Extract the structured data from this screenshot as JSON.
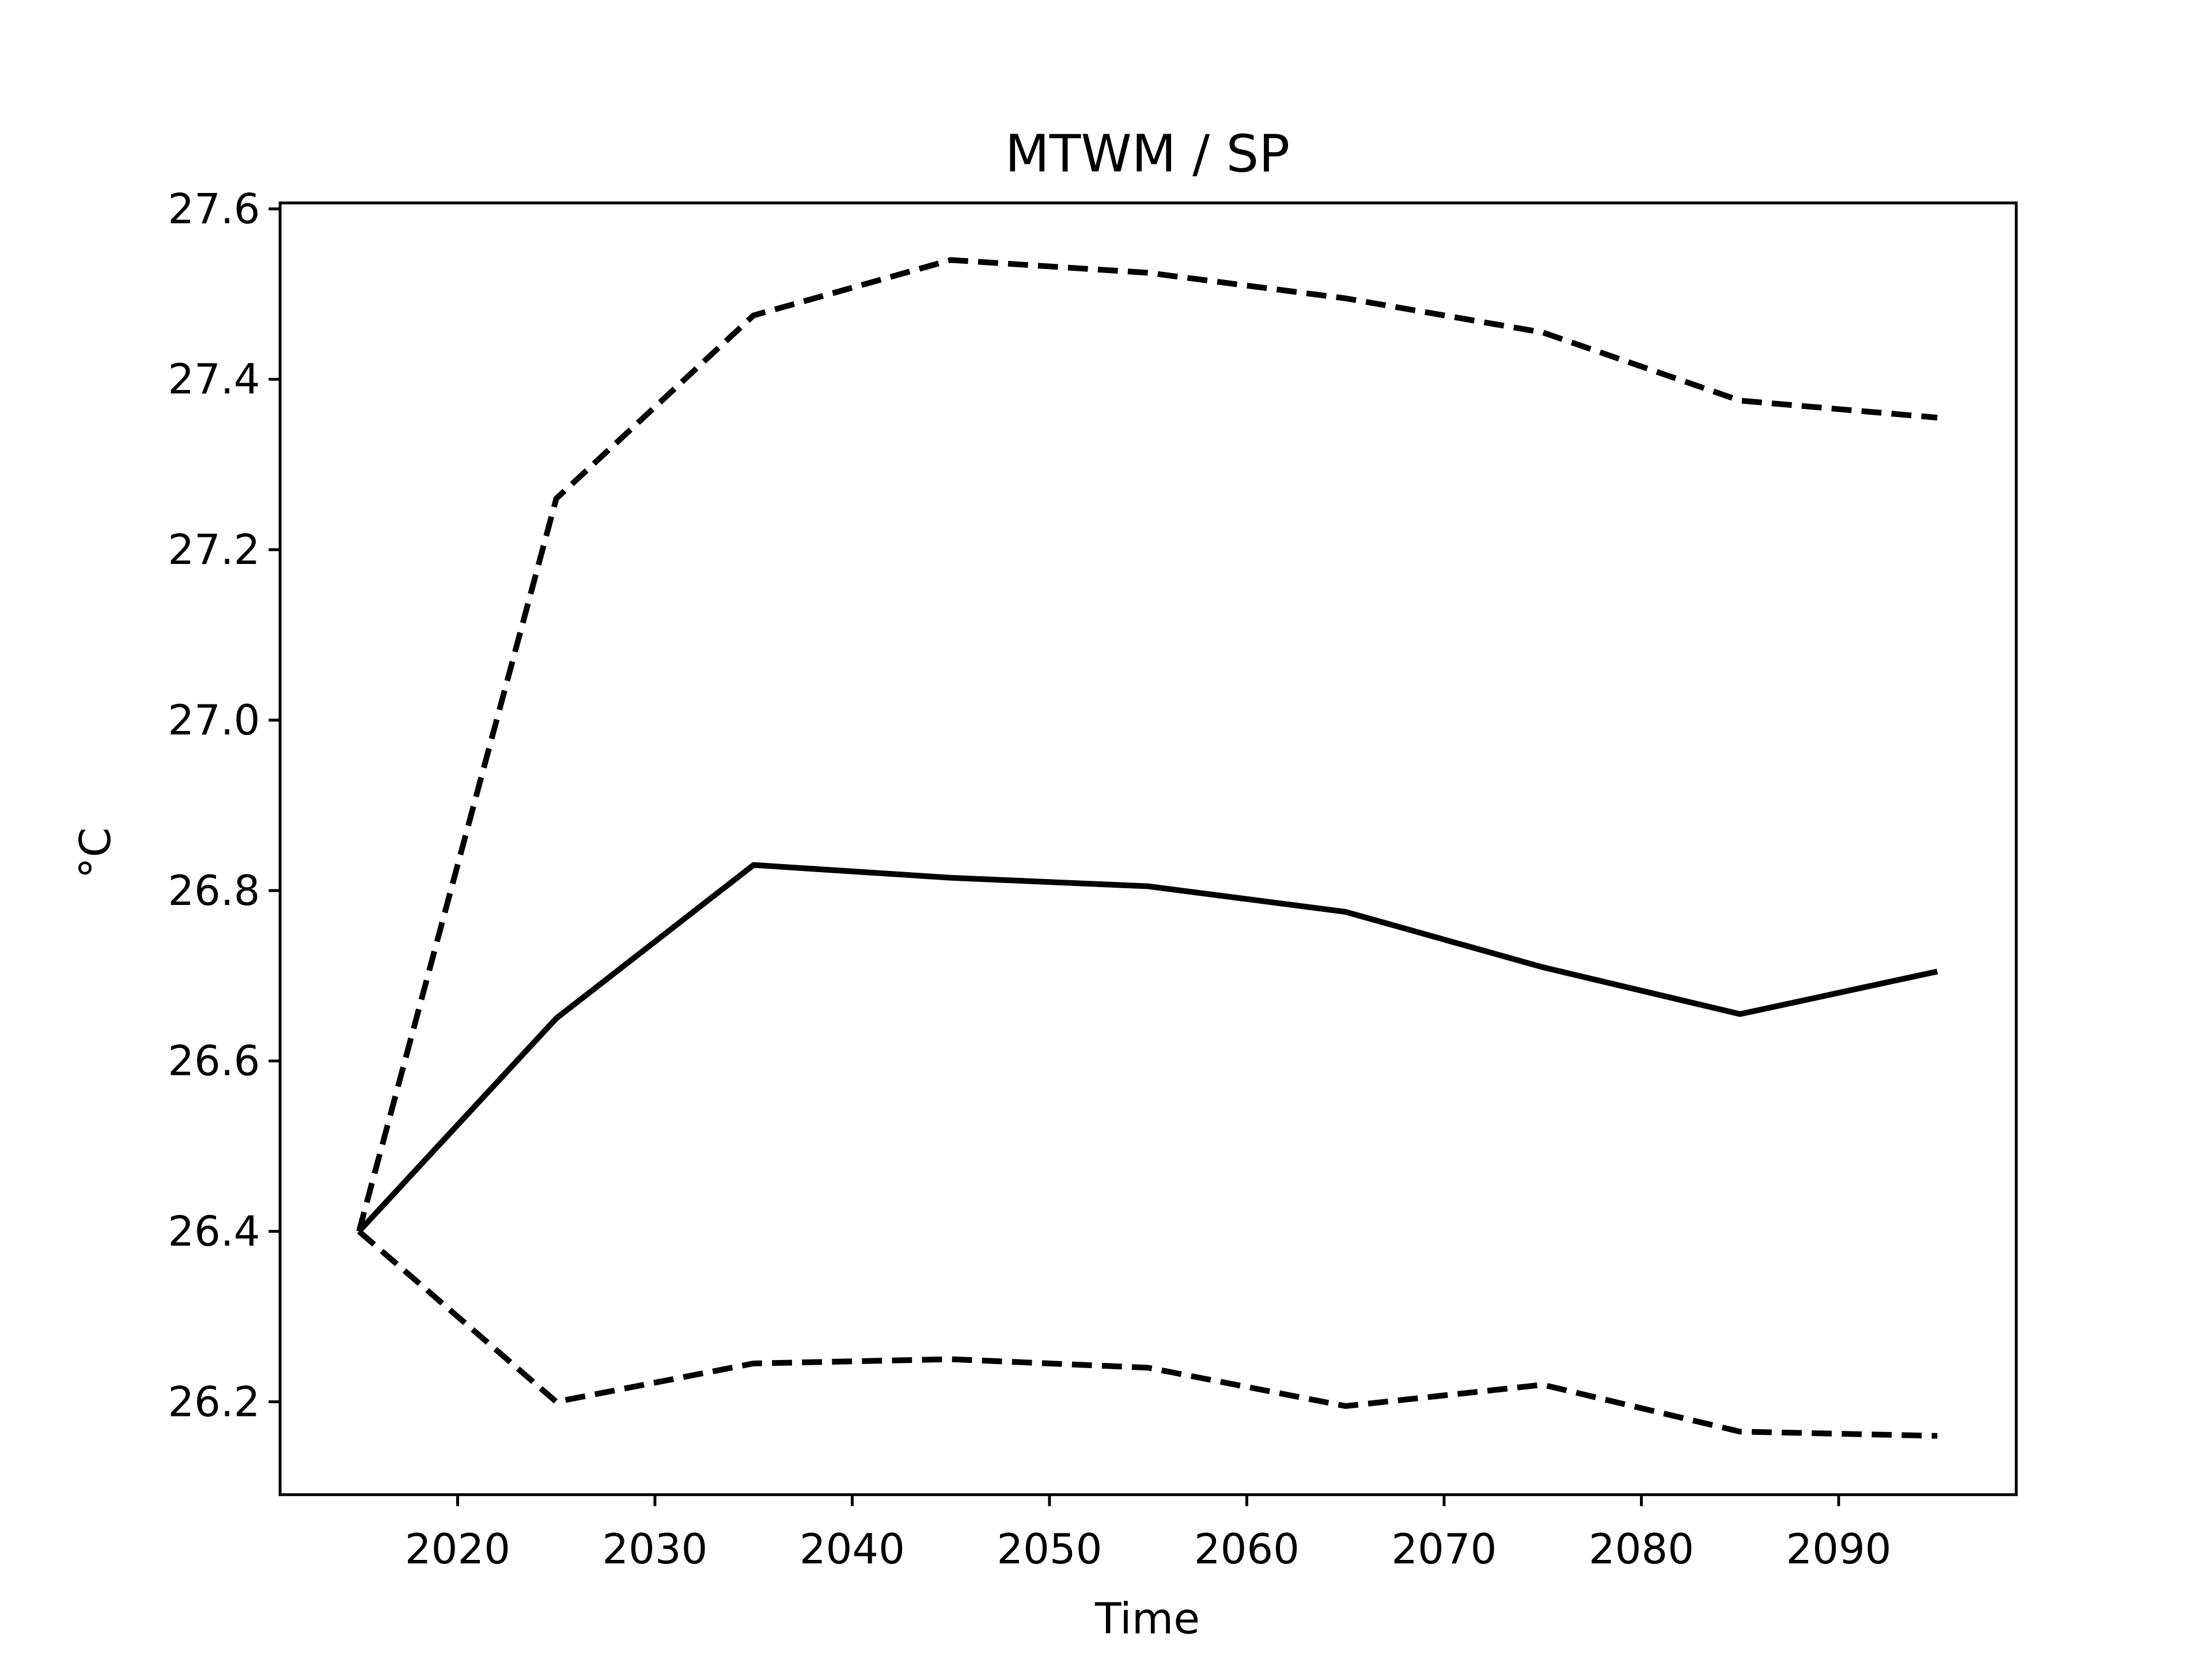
{
  "chart_data": {
    "type": "line",
    "title": "MTWM / SP",
    "xlabel": "Time",
    "ylabel": "°C",
    "x": [
      2015,
      2025,
      2035,
      2045,
      2055,
      2065,
      2075,
      2085,
      2095
    ],
    "series": [
      {
        "color": "#000000",
        "dashed": false,
        "values": [
          26.4,
          26.65,
          26.83,
          26.815,
          26.805,
          26.775,
          26.71,
          26.655,
          26.705
        ]
      },
      {
        "color": "#000000",
        "dashed": true,
        "values": [
          26.4,
          27.26,
          27.475,
          27.54,
          27.525,
          27.495,
          27.455,
          27.375,
          27.355
        ]
      },
      {
        "color": "#000000",
        "dashed": true,
        "values": [
          26.4,
          26.2,
          26.245,
          26.25,
          26.24,
          26.195,
          26.22,
          26.165,
          26.16
        ]
      }
    ],
    "xlim": [
      2011,
      2099
    ],
    "ylim": [
      26.091,
      27.607
    ],
    "xticks": [
      2020,
      2030,
      2040,
      2050,
      2060,
      2070,
      2080,
      2090
    ],
    "yticks": [
      26.2,
      26.4,
      26.6,
      26.8,
      {
        "value": 27,
        "label": "27.0"
      },
      27.2,
      27.4,
      27.6
    ],
    "grid": false
  }
}
